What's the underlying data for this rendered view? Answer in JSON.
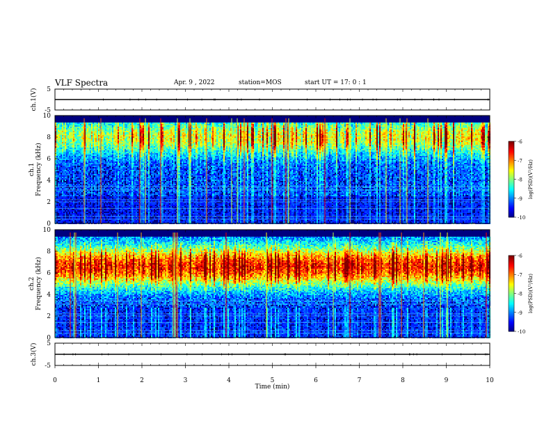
{
  "header": {
    "title": "VLF Spectra",
    "date": "Apr. 9 , 2022",
    "station": "station=MOS",
    "start": "start UT = 17: 0 : 1"
  },
  "chart_data": [
    {
      "type": "line",
      "panel": "ch1-waveform",
      "ylabel": "ch.1(V)",
      "ylim": [
        -5,
        5
      ],
      "yticks": [
        "5",
        "-5"
      ],
      "xlim": [
        0,
        10
      ],
      "series": [
        {
          "x": [
            0,
            10
          ],
          "values": [
            0,
            0
          ]
        }
      ]
    },
    {
      "type": "heatmap",
      "panel": "ch1-spectrogram",
      "ylabel": "ch.1 Frequency (kHz)",
      "ylim": [
        0,
        10
      ],
      "yticks": [
        0,
        2,
        4,
        6,
        8,
        10
      ],
      "xlim": [
        0,
        10
      ],
      "profile": "sferic",
      "colorbar": {
        "label": "log(PSD)(V²/Hz)",
        "range": [
          -10,
          -6
        ],
        "ticks": [
          "-6",
          "-7",
          "-8",
          "-9",
          "-10"
        ]
      }
    },
    {
      "type": "heatmap",
      "panel": "ch2-spectrogram",
      "ylabel": "ch.2 Frequency (kHz)",
      "ylim": [
        0,
        10
      ],
      "yticks": [
        0,
        2,
        4,
        6,
        8,
        10
      ],
      "xlim": [
        0,
        10
      ],
      "profile": "strong",
      "colorbar": {
        "label": "log(PSD)(V²/Hz)",
        "range": [
          -10,
          -6
        ],
        "ticks": [
          "-6",
          "-7",
          "-8",
          "-9",
          "-10"
        ]
      }
    },
    {
      "type": "line",
      "panel": "ch3-waveform",
      "ylabel": "ch.3(V)",
      "ylim": [
        -5,
        5
      ],
      "yticks": [
        "5",
        "-5"
      ],
      "xlim": [
        0,
        10
      ],
      "xlabel": "Time (min)",
      "xticks": [
        0,
        1,
        2,
        3,
        4,
        5,
        6,
        7,
        8,
        9,
        10
      ],
      "series": [
        {
          "x": [
            0,
            10
          ],
          "values": [
            0,
            0
          ]
        }
      ]
    }
  ]
}
